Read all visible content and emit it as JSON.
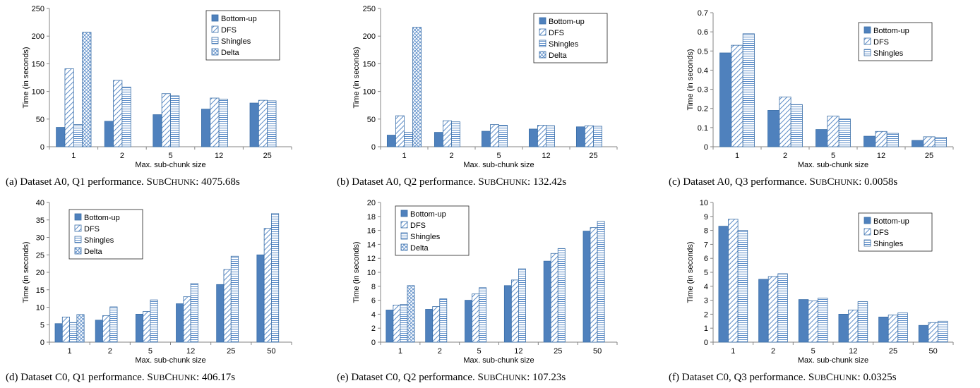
{
  "colors": {
    "bar_stroke": "#3a6ea8",
    "solid_fill": "#4f81bd",
    "pattern_line": "#5b8cc8",
    "axis": "#868686",
    "grid": "#d9d9d9"
  },
  "series_styles": {
    "Bottom-up": "solid",
    "DFS": "diag",
    "Shingles": "hlines",
    "Delta": "cross"
  },
  "chart_data": [
    {
      "type": "bar",
      "categories": [
        "1",
        "2",
        "5",
        "12",
        "25"
      ],
      "series": [
        {
          "name": "Bottom-up",
          "values": [
            35,
            46,
            58,
            68,
            79
          ]
        },
        {
          "name": "DFS",
          "values": [
            141,
            120,
            96,
            88,
            84
          ]
        },
        {
          "name": "Shingles",
          "values": [
            40,
            108,
            92,
            86,
            83
          ]
        },
        {
          "name": "Delta",
          "values": [
            207,
            null,
            null,
            null,
            null
          ]
        }
      ],
      "xlabel": "Max. sub-chunk size",
      "ylabel": "Time (in seconds)",
      "ylim": [
        0,
        250
      ],
      "yticks": [
        "0",
        "50",
        "100",
        "150",
        "200",
        "250"
      ],
      "grid": false,
      "legend": "top-right",
      "caption": {
        "label": "(a) Dataset A0, Q1 performance.",
        "method_big": "S",
        "method_small": "UB",
        "method_big2": "C",
        "method_small2": "HUNK",
        "value": ": 4075.68s"
      }
    },
    {
      "type": "bar",
      "categories": [
        "1",
        "2",
        "5",
        "12",
        "25"
      ],
      "series": [
        {
          "name": "Bottom-up",
          "values": [
            21,
            26,
            28,
            32,
            36
          ]
        },
        {
          "name": "DFS",
          "values": [
            56,
            47,
            40,
            39,
            38
          ]
        },
        {
          "name": "Shingles",
          "values": [
            26,
            45,
            39,
            38,
            37
          ]
        },
        {
          "name": "Delta",
          "values": [
            216,
            null,
            null,
            null,
            null
          ]
        }
      ],
      "xlabel": "Max. sub-chunk size",
      "ylabel": "Time (in seconds)",
      "ylim": [
        0,
        250
      ],
      "yticks": [
        "0",
        "50",
        "100",
        "150",
        "200",
        "250"
      ],
      "grid": false,
      "legend": "top-right",
      "caption": {
        "label": "(b) Dataset A0, Q2 performance.",
        "method_big": "S",
        "method_small": "UB",
        "method_big2": "C",
        "method_small2": "HUNK",
        "value": ": 132.42s"
      }
    },
    {
      "type": "bar",
      "categories": [
        "1",
        "2",
        "5",
        "12",
        "25"
      ],
      "series": [
        {
          "name": "Bottom-up",
          "values": [
            0.49,
            0.19,
            0.09,
            0.055,
            0.033
          ]
        },
        {
          "name": "DFS",
          "values": [
            0.53,
            0.26,
            0.16,
            0.08,
            0.052
          ]
        },
        {
          "name": "Shingles",
          "values": [
            0.59,
            0.22,
            0.145,
            0.07,
            0.05
          ]
        }
      ],
      "xlabel": "Max. sub-chunk size",
      "ylabel": "Time (in seconds)",
      "ylim": [
        0,
        0.7
      ],
      "yticks": [
        "0",
        "0.1",
        "0.2",
        "0.3",
        "0.4",
        "0.5",
        "0.6",
        "0.7"
      ],
      "grid": false,
      "legend": "top-right",
      "caption": {
        "label": "(c) Dataset A0, Q3 performance.",
        "method_big": "S",
        "method_small": "UB",
        "method_big2": "C",
        "method_small2": "HUNK",
        "value": ": 0.0058s"
      }
    },
    {
      "type": "bar",
      "categories": [
        "1",
        "2",
        "5",
        "12",
        "25",
        "50"
      ],
      "series": [
        {
          "name": "Bottom-up",
          "values": [
            5.3,
            6.3,
            8,
            11,
            16.5,
            25
          ]
        },
        {
          "name": "DFS",
          "values": [
            7.2,
            7.6,
            8.8,
            13,
            20.8,
            32.6
          ]
        },
        {
          "name": "Shingles",
          "values": [
            5.6,
            10.1,
            12.1,
            16.8,
            24.6,
            36.8
          ]
        },
        {
          "name": "Delta",
          "values": [
            7.9,
            null,
            null,
            null,
            null,
            null
          ]
        }
      ],
      "xlabel": "Max. sub-chunk size",
      "ylabel": "Time (in seconds)",
      "ylim": [
        0,
        40
      ],
      "yticks": [
        "0",
        "5",
        "10",
        "15",
        "20",
        "25",
        "30",
        "35",
        "40"
      ],
      "grid": false,
      "legend": "top-left",
      "caption": {
        "label": "(d) Dataset C0, Q1 performance.",
        "method_big": "S",
        "method_small": "UB",
        "method_big2": "C",
        "method_small2": "HUNK",
        "value": ": 406.17s"
      }
    },
    {
      "type": "bar",
      "categories": [
        "1",
        "2",
        "5",
        "12",
        "25",
        "50"
      ],
      "series": [
        {
          "name": "Bottom-up",
          "values": [
            4.6,
            4.7,
            6,
            8.1,
            11.6,
            15.9
          ]
        },
        {
          "name": "DFS",
          "values": [
            5.3,
            5.1,
            6.9,
            8.9,
            12.7,
            16.4
          ]
        },
        {
          "name": "Shingles",
          "values": [
            5.4,
            6.2,
            7.8,
            10.5,
            13.4,
            17.3
          ]
        },
        {
          "name": "Delta",
          "values": [
            8.1,
            null,
            null,
            null,
            null,
            null
          ]
        }
      ],
      "xlabel": "Max. sub-chunk size",
      "ylabel": "Time (in seconds)",
      "ylim": [
        0,
        20
      ],
      "yticks": [
        "0",
        "2",
        "4",
        "6",
        "8",
        "10",
        "12",
        "14",
        "16",
        "18",
        "20"
      ],
      "grid": false,
      "legend": "top-left",
      "caption": {
        "label": "(e) Dataset C0, Q2 performance.",
        "method_big": "S",
        "method_small": "UB",
        "method_big2": "C",
        "method_small2": "HUNK",
        "value": ": 107.23s"
      }
    },
    {
      "type": "bar",
      "categories": [
        "1",
        "2",
        "5",
        "12",
        "25",
        "50"
      ],
      "series": [
        {
          "name": "Bottom-up",
          "values": [
            8.3,
            4.5,
            3.05,
            2,
            1.8,
            1.2
          ]
        },
        {
          "name": "DFS",
          "values": [
            8.8,
            4.7,
            2.95,
            2.3,
            1.95,
            1.4
          ]
        },
        {
          "name": "Shingles",
          "values": [
            8,
            4.9,
            3.15,
            2.9,
            2.1,
            1.5
          ]
        }
      ],
      "xlabel": "Max. sub-chunk size",
      "ylabel": "Time (in seconds)",
      "ylim": [
        0,
        10
      ],
      "yticks": [
        "0",
        "1",
        "2",
        "3",
        "4",
        "5",
        "6",
        "7",
        "8",
        "9",
        "10"
      ],
      "grid": false,
      "legend": "top-right",
      "caption": {
        "label": "(f) Dataset C0, Q3 performance.",
        "method_big": "S",
        "method_small": "UB",
        "method_big2": "C",
        "method_small2": "HUNK",
        "value": ": 0.0325s"
      }
    }
  ]
}
